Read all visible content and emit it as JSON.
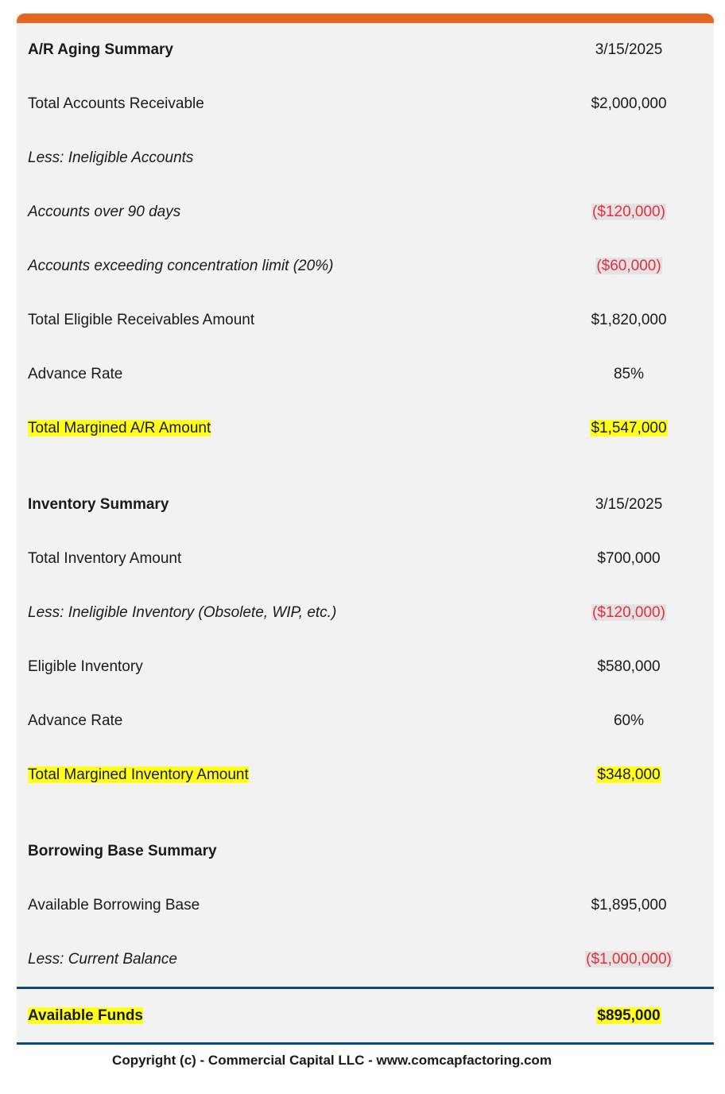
{
  "ar": {
    "title": "A/R Aging Summary",
    "date": "3/15/2025",
    "rows": [
      {
        "label": "Total Accounts Receivable",
        "value": "$2,000,000"
      },
      {
        "label": "Less: Ineligible Accounts",
        "value": ""
      },
      {
        "label": "Accounts over 90 days",
        "value": "($120,000)"
      },
      {
        "label": "Accounts exceeding concentration limit (20%)",
        "value": "($60,000)"
      },
      {
        "label": "Total Eligible Receivables Amount",
        "value": "$1,820,000"
      },
      {
        "label": "Advance Rate",
        "value": "85%"
      },
      {
        "label": "Total Margined A/R Amount",
        "value": "$1,547,000"
      }
    ]
  },
  "inventory": {
    "title": "Inventory Summary",
    "date": "3/15/2025",
    "rows": [
      {
        "label": "Total Inventory Amount",
        "value": "$700,000"
      },
      {
        "label": "Less: Ineligible Inventory (Obsolete, WIP, etc.)",
        "value": "($120,000)"
      },
      {
        "label": "Eligible Inventory",
        "value": "$580,000"
      },
      {
        "label": "Advance Rate",
        "value": "60%"
      },
      {
        "label": "Total Margined Inventory Amount",
        "value": "$348,000"
      }
    ]
  },
  "borrowing": {
    "title": "Borrowing Base Summary",
    "rows": [
      {
        "label": "Available Borrowing Base",
        "value": "$1,895,000"
      },
      {
        "label": "Less: Current Balance",
        "value": "($1,000,000)"
      }
    ]
  },
  "total": {
    "label": "Available Funds",
    "value": "$895,000"
  },
  "footer": "Copyright (c) - Commercial Capital LLC - www.comcapfactoring.com",
  "colors": {
    "accent_bar": "#e8651f",
    "negative": "#e0303f",
    "highlight": "#ffff1a",
    "rule": "#0d4a85"
  }
}
